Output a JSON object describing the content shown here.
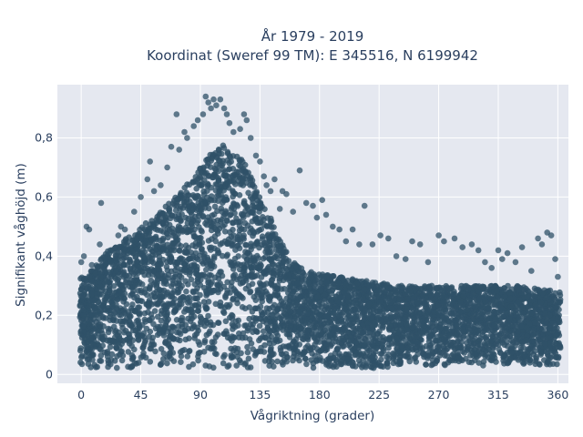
{
  "chart_data": {
    "type": "scatter",
    "title": "År 1979 - 2019",
    "subtitle": "Koordinat (Sweref 99 TM): E 345516, N 6199942",
    "xlabel": "Vågriktning (grader)",
    "ylabel": "Signifikant våghöjd (m)",
    "xlim": [
      -18,
      368
    ],
    "ylim": [
      -0.03,
      0.98
    ],
    "xticks": [
      0,
      45,
      90,
      135,
      180,
      225,
      270,
      315,
      360
    ],
    "xtick_labels": [
      "0",
      "45",
      "90",
      "135",
      "180",
      "225",
      "270",
      "315",
      "360"
    ],
    "yticks": [
      0,
      0.2,
      0.4,
      0.6,
      0.8
    ],
    "ytick_labels": [
      "0",
      "0,2",
      "0,4",
      "0,6",
      "0,8"
    ],
    "grid": true,
    "legend": "none",
    "marker_color": "#2f5168",
    "background_color": "#e5e8f0",
    "band": {
      "x": [
        0,
        10,
        20,
        30,
        45,
        60,
        75,
        90,
        100,
        110,
        120,
        130,
        140,
        150,
        160,
        170,
        180,
        195,
        210,
        225,
        240,
        255,
        270,
        285,
        300,
        315,
        330,
        345,
        360
      ],
      "lower": [
        0.02,
        0.02,
        0.02,
        0.02,
        0.02,
        0.02,
        0.02,
        0.02,
        0.01,
        0.01,
        0.02,
        0.02,
        0.02,
        0.02,
        0.02,
        0.02,
        0.02,
        0.02,
        0.02,
        0.02,
        0.03,
        0.03,
        0.03,
        0.03,
        0.03,
        0.03,
        0.03,
        0.03,
        0.03
      ],
      "upper": [
        0.33,
        0.36,
        0.42,
        0.45,
        0.5,
        0.55,
        0.62,
        0.7,
        0.76,
        0.78,
        0.74,
        0.66,
        0.56,
        0.46,
        0.38,
        0.35,
        0.34,
        0.33,
        0.32,
        0.31,
        0.3,
        0.3,
        0.3,
        0.3,
        0.3,
        0.3,
        0.3,
        0.29,
        0.28
      ]
    },
    "outliers": [
      [
        0,
        0.38
      ],
      [
        2,
        0.4
      ],
      [
        4,
        0.5
      ],
      [
        6,
        0.49
      ],
      [
        8,
        0.37
      ],
      [
        14,
        0.44
      ],
      [
        15,
        0.58
      ],
      [
        22,
        0.42
      ],
      [
        28,
        0.47
      ],
      [
        30,
        0.5
      ],
      [
        33,
        0.49
      ],
      [
        40,
        0.55
      ],
      [
        45,
        0.6
      ],
      [
        50,
        0.66
      ],
      [
        52,
        0.72
      ],
      [
        55,
        0.62
      ],
      [
        60,
        0.64
      ],
      [
        65,
        0.7
      ],
      [
        68,
        0.77
      ],
      [
        72,
        0.88
      ],
      [
        74,
        0.76
      ],
      [
        78,
        0.82
      ],
      [
        80,
        0.8
      ],
      [
        85,
        0.84
      ],
      [
        88,
        0.86
      ],
      [
        92,
        0.88
      ],
      [
        94,
        0.94
      ],
      [
        96,
        0.92
      ],
      [
        98,
        0.9
      ],
      [
        100,
        0.93
      ],
      [
        102,
        0.91
      ],
      [
        105,
        0.93
      ],
      [
        108,
        0.9
      ],
      [
        110,
        0.88
      ],
      [
        112,
        0.85
      ],
      [
        115,
        0.82
      ],
      [
        120,
        0.83
      ],
      [
        123,
        0.88
      ],
      [
        125,
        0.86
      ],
      [
        128,
        0.8
      ],
      [
        132,
        0.74
      ],
      [
        135,
        0.72
      ],
      [
        138,
        0.67
      ],
      [
        140,
        0.64
      ],
      [
        143,
        0.62
      ],
      [
        146,
        0.66
      ],
      [
        150,
        0.56
      ],
      [
        152,
        0.62
      ],
      [
        155,
        0.61
      ],
      [
        160,
        0.55
      ],
      [
        165,
        0.69
      ],
      [
        170,
        0.58
      ],
      [
        175,
        0.57
      ],
      [
        178,
        0.53
      ],
      [
        182,
        0.59
      ],
      [
        185,
        0.54
      ],
      [
        190,
        0.5
      ],
      [
        195,
        0.49
      ],
      [
        200,
        0.45
      ],
      [
        205,
        0.49
      ],
      [
        210,
        0.44
      ],
      [
        214,
        0.57
      ],
      [
        220,
        0.44
      ],
      [
        226,
        0.47
      ],
      [
        232,
        0.46
      ],
      [
        238,
        0.4
      ],
      [
        245,
        0.39
      ],
      [
        250,
        0.45
      ],
      [
        256,
        0.44
      ],
      [
        262,
        0.38
      ],
      [
        270,
        0.47
      ],
      [
        274,
        0.45
      ],
      [
        282,
        0.46
      ],
      [
        288,
        0.43
      ],
      [
        295,
        0.44
      ],
      [
        300,
        0.42
      ],
      [
        305,
        0.38
      ],
      [
        310,
        0.36
      ],
      [
        315,
        0.42
      ],
      [
        318,
        0.39
      ],
      [
        322,
        0.41
      ],
      [
        328,
        0.38
      ],
      [
        333,
        0.43
      ],
      [
        340,
        0.35
      ],
      [
        345,
        0.46
      ],
      [
        348,
        0.44
      ],
      [
        352,
        0.48
      ],
      [
        355,
        0.47
      ],
      [
        358,
        0.39
      ],
      [
        360,
        0.33
      ]
    ]
  }
}
